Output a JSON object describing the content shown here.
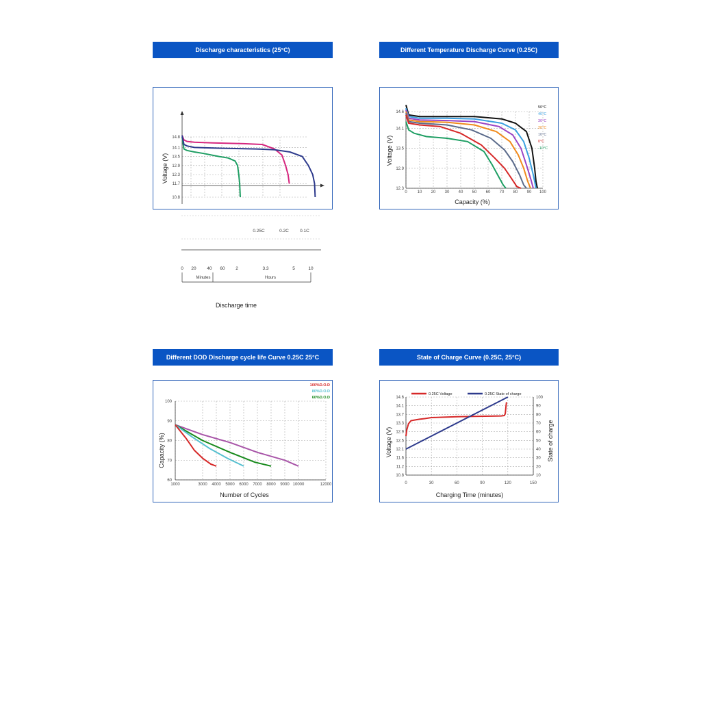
{
  "colors": {
    "header_bg": "#0a55c4",
    "border": "#2e63b8",
    "grid": "#aaaaaa"
  },
  "headers": {
    "p1": "Discharge characteristics (25°C)",
    "p2": "Different Temperature Discharge Curve (0.25C)",
    "p3": "Different DOD Discharge cycle life Curve 0.25C 25°C",
    "p4": "State of Charge Curve (0.25C, 25°C)"
  },
  "chart_data": [
    {
      "id": "p1",
      "type": "line",
      "title": "Discharge characteristics (25°C)",
      "ylabel": "Voltage (V)",
      "xlabel": "Discharge time",
      "ylim": [
        10.8,
        14.8
      ],
      "yticks": [
        "14.8",
        "14.1",
        "13.5",
        "12.9",
        "12.3",
        "11.7",
        "10.8"
      ],
      "x_ticks": [
        "0",
        "20",
        "40",
        "60",
        "2",
        "3.3",
        "5",
        "10"
      ],
      "x_groups": [
        "Minutes",
        "Hours"
      ],
      "grid": true,
      "series": [
        {
          "name": "0.25C",
          "color": "#1e9e63",
          "x": [
            0,
            0.3,
            0.8,
            2,
            3.5,
            6,
            7.5,
            8.6,
            9.0,
            9.2,
            9.35,
            9.45
          ],
          "y": [
            14.8,
            14.0,
            13.9,
            13.8,
            13.7,
            13.5,
            13.4,
            13.2,
            12.9,
            12.3,
            11.7,
            10.8
          ]
        },
        {
          "name": "0.2C",
          "color": "#d6267e",
          "x": [
            0,
            0.3,
            0.8,
            2,
            5,
            10,
            13,
            15,
            16.2,
            16.8,
            17.2,
            17.4
          ],
          "y": [
            14.9,
            14.6,
            14.5,
            14.45,
            14.4,
            14.35,
            14.3,
            14.0,
            13.6,
            12.9,
            12.3,
            11.7
          ]
        },
        {
          "name": "0.1C",
          "color": "#2d3a8c",
          "x": [
            0,
            0.3,
            0.8,
            2,
            6,
            12,
            15,
            17.5,
            19.5,
            20.5,
            21.2,
            21.5,
            21.6
          ],
          "y": [
            14.9,
            14.3,
            14.2,
            14.1,
            14.05,
            14.0,
            13.95,
            13.8,
            13.5,
            12.9,
            12.3,
            11.7,
            10.8
          ]
        }
      ]
    },
    {
      "id": "p2",
      "type": "line",
      "title": "Different Temperature Discharge Curve (0.25C)",
      "ylabel": "Voltage (V)",
      "xlabel": "Capacity (%)",
      "ylim": [
        12.3,
        14.6
      ],
      "xlim": [
        0,
        100
      ],
      "yticks": [
        "14.6",
        "14.1",
        "13.5",
        "12.9",
        "12.3"
      ],
      "xticks": [
        "0",
        "10",
        "20",
        "30",
        "40",
        "50",
        "60",
        "70",
        "80",
        "90",
        "100"
      ],
      "grid": true,
      "series": [
        {
          "name": "50°C",
          "color": "#111111",
          "x": [
            0,
            2,
            10,
            30,
            50,
            70,
            80,
            88,
            92,
            94,
            95,
            96
          ],
          "y": [
            14.8,
            14.5,
            14.45,
            14.45,
            14.45,
            14.38,
            14.25,
            14.0,
            13.5,
            12.9,
            12.5,
            12.3
          ]
        },
        {
          "name": "40°C",
          "color": "#3aa0e0",
          "x": [
            0,
            2,
            10,
            30,
            50,
            70,
            80,
            86,
            90,
            93,
            95
          ],
          "y": [
            14.7,
            14.45,
            14.4,
            14.4,
            14.38,
            14.25,
            14.05,
            13.7,
            13.2,
            12.7,
            12.3
          ]
        },
        {
          "name": "30°C",
          "color": "#9b44c4",
          "x": [
            0,
            2,
            10,
            30,
            50,
            68,
            78,
            84,
            88,
            91,
            93
          ],
          "y": [
            14.65,
            14.4,
            14.35,
            14.33,
            14.3,
            14.15,
            13.9,
            13.5,
            13.0,
            12.6,
            12.3
          ]
        },
        {
          "name": "20°C",
          "color": "#f08a1c",
          "x": [
            0,
            2,
            10,
            30,
            50,
            66,
            76,
            82,
            86,
            89,
            91
          ],
          "y": [
            14.6,
            14.35,
            14.3,
            14.28,
            14.2,
            14.0,
            13.7,
            13.3,
            12.9,
            12.5,
            12.3
          ]
        },
        {
          "name": "10°C",
          "color": "#5a6a8a",
          "x": [
            0,
            2,
            10,
            30,
            48,
            62,
            72,
            78,
            83,
            86,
            88
          ],
          "y": [
            14.55,
            14.3,
            14.25,
            14.2,
            14.05,
            13.8,
            13.45,
            13.1,
            12.7,
            12.4,
            12.3
          ]
        },
        {
          "name": "0°C",
          "color": "#d62828",
          "x": [
            0,
            2,
            10,
            25,
            40,
            55,
            65,
            72,
            77,
            81,
            84
          ],
          "y": [
            14.5,
            14.25,
            14.2,
            14.15,
            13.95,
            13.6,
            13.2,
            12.9,
            12.6,
            12.35,
            12.3
          ]
        },
        {
          "name": "-10°C",
          "color": "#1e9e63",
          "x": [
            0,
            2,
            6,
            15,
            30,
            45,
            57,
            63,
            67,
            71,
            73
          ],
          "y": [
            14.3,
            14.05,
            13.95,
            13.85,
            13.8,
            13.7,
            13.4,
            13.0,
            12.7,
            12.4,
            12.3
          ]
        }
      ]
    },
    {
      "id": "p3",
      "type": "line",
      "title": "Different DOD Discharge cycle life Curve 0.25C 25°C",
      "ylabel": "Capacity (%)",
      "xlabel": "Number of Cycles",
      "ylim": [
        60,
        100
      ],
      "xlim": [
        1000,
        12000
      ],
      "yticks": [
        "100",
        "90",
        "80",
        "70",
        "60"
      ],
      "xticks": [
        "1000",
        "3000",
        "4000",
        "5000",
        "6000",
        "7000",
        "8000",
        "9000",
        "10000",
        "12000"
      ],
      "grid": true,
      "series": [
        {
          "name": "100%D.O.D",
          "color": "#d62828",
          "x": [
            1000,
            1800,
            2400,
            3000,
            3600,
            4000
          ],
          "y": [
            88,
            81,
            75,
            71,
            68,
            67
          ]
        },
        {
          "name": "80%D.O.D",
          "color": "#56c0d0",
          "x": [
            1000,
            2200,
            3500,
            4800,
            5700,
            6000
          ],
          "y": [
            88,
            82,
            76,
            71,
            68,
            67
          ]
        },
        {
          "name": "60%D.O.D",
          "color": "#178a1c",
          "x": [
            1000,
            3000,
            5000,
            6800,
            8000
          ],
          "y": [
            88,
            80,
            74,
            69,
            67
          ]
        },
        {
          "name": "",
          "color": "#a855a8",
          "x": [
            1000,
            3000,
            5000,
            7000,
            9000,
            10000
          ],
          "y": [
            88,
            83,
            79,
            74,
            70,
            67
          ]
        }
      ]
    },
    {
      "id": "p4",
      "type": "line",
      "title": "State of Charge Curve (0.25C, 25°C)",
      "ylabel": "Voltage (V)",
      "y2label": "State of charge",
      "xlabel": "Charging Time (minutes)",
      "ylim": [
        10.8,
        14.6
      ],
      "y2lim": [
        10,
        100
      ],
      "xlim": [
        0,
        150
      ],
      "yticks": [
        "14.6",
        "14.1",
        "13.7",
        "13.3",
        "12.9",
        "12.5",
        "12.1",
        "11.6",
        "11.2",
        "10.8"
      ],
      "y2ticks": [
        "100",
        "90",
        "80",
        "70",
        "60",
        "50",
        "40",
        "30",
        "20",
        "10"
      ],
      "xticks": [
        "0",
        "30",
        "60",
        "90",
        "120",
        "150"
      ],
      "grid": true,
      "series": [
        {
          "name": "0.25C Voltage",
          "color": "#d62828",
          "axis": "y",
          "x": [
            0,
            1,
            3,
            6,
            10,
            16,
            22,
            30,
            45,
            60,
            80,
            100,
            112,
            116,
            117,
            118,
            118.5
          ],
          "y": [
            12.7,
            13.0,
            13.3,
            13.45,
            13.48,
            13.52,
            13.55,
            13.6,
            13.62,
            13.64,
            13.66,
            13.67,
            13.68,
            13.7,
            13.8,
            14.2,
            14.35
          ]
        },
        {
          "name": "0.25C State of charge",
          "color": "#2d3a8c",
          "axis": "y2",
          "x": [
            0,
            120
          ],
          "y": [
            40,
            100
          ]
        }
      ]
    }
  ]
}
